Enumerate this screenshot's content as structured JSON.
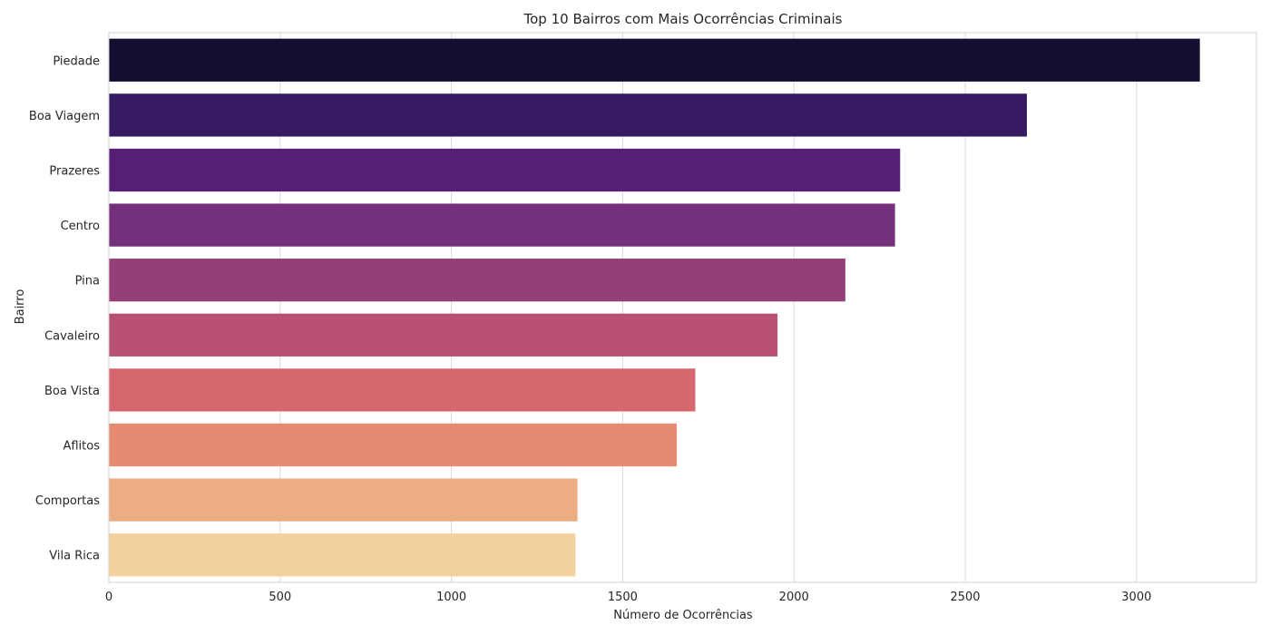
{
  "chart_data": {
    "type": "bar",
    "orientation": "horizontal",
    "title": "Top 10 Bairros com Mais Ocorrências Criminais",
    "xlabel": "Número de Ocorrências",
    "ylabel": "Bairro",
    "xlim": [
      0,
      3350
    ],
    "xticks": [
      0,
      500,
      1000,
      1500,
      2000,
      2500,
      3000
    ],
    "grid": "vertical",
    "legend": "none",
    "categories": [
      "Piedade",
      "Boa Viagem",
      "Prazeres",
      "Centro",
      "Pina",
      "Cavaleiro",
      "Boa Vista",
      "Aflitos",
      "Comportas",
      "Vila Rica"
    ],
    "values": [
      3185,
      2680,
      2310,
      2295,
      2150,
      1952,
      1712,
      1658,
      1368,
      1362
    ],
    "colors": [
      "#140f30",
      "#361a62",
      "#571e76",
      "#74307a",
      "#943f77",
      "#b84f74",
      "#d6676f",
      "#e68a71",
      "#ecad84",
      "#f2d19f"
    ]
  }
}
